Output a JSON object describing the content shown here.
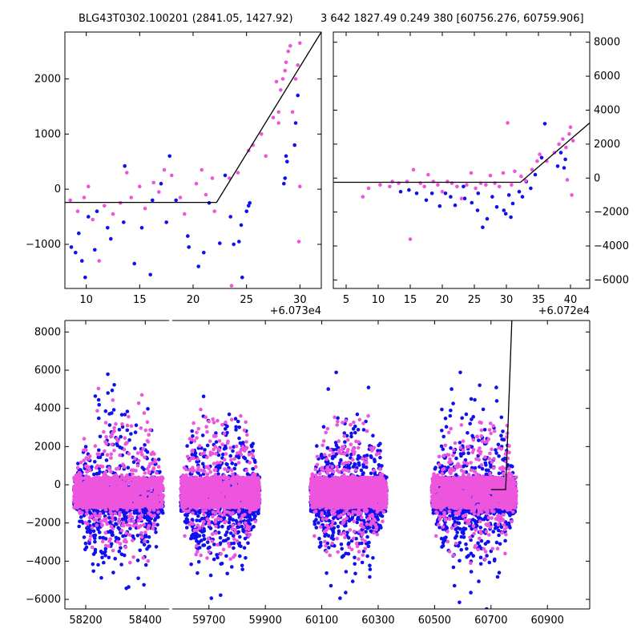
{
  "titles": {
    "left": "BLG43T0302.100201 (2841.05, 1427.92)",
    "right": "3 642 1827.49 0.249 380 [60756.276, 60759.906]"
  },
  "colors": {
    "series_a": "#1010ee",
    "series_b": "#ee55dd",
    "model": "#000000"
  },
  "chart_data": [
    {
      "id": "zoom-left",
      "type": "scatter",
      "xlim": [
        8,
        32
      ],
      "ylim": [
        -1800,
        2850
      ],
      "xticks": [
        10,
        15,
        20,
        25,
        30
      ],
      "xtick_labels": [
        "10",
        "15",
        "20",
        "25",
        "30"
      ],
      "yticks": [
        -1000,
        0,
        1000,
        2000
      ],
      "ytick_labels": [
        "−1000",
        "0",
        "1000",
        "2000"
      ],
      "offset_label": "+6.073e4",
      "model": [
        [
          8,
          -240
        ],
        [
          22.2,
          -240
        ],
        [
          32,
          2850
        ]
      ],
      "series_a": [
        [
          8.6,
          -1050
        ],
        [
          9.0,
          -1150
        ],
        [
          9.3,
          -800
        ],
        [
          9.6,
          -1300
        ],
        [
          9.9,
          -1600
        ],
        [
          10.2,
          -500
        ],
        [
          10.8,
          -1100
        ],
        [
          11.0,
          -400
        ],
        [
          12.0,
          -700
        ],
        [
          12.3,
          -900
        ],
        [
          13.5,
          -600
        ],
        [
          13.6,
          420
        ],
        [
          14.5,
          -1350
        ],
        [
          15.2,
          -700
        ],
        [
          16.0,
          -1550
        ],
        [
          16.2,
          -200
        ],
        [
          17.0,
          100
        ],
        [
          17.5,
          -600
        ],
        [
          17.8,
          600
        ],
        [
          18.4,
          -200
        ],
        [
          19.5,
          -850
        ],
        [
          19.6,
          -1050
        ],
        [
          20.5,
          -1400
        ],
        [
          21.0,
          -1150
        ],
        [
          21.5,
          -250
        ],
        [
          22.5,
          -980
        ],
        [
          23.0,
          250
        ],
        [
          23.5,
          -500
        ],
        [
          23.8,
          -1000
        ],
        [
          24.3,
          -950
        ],
        [
          24.5,
          -650
        ],
        [
          25.0,
          -400
        ],
        [
          25.2,
          -300
        ],
        [
          25.3,
          -250
        ],
        [
          24.6,
          -1600
        ],
        [
          28.5,
          100
        ],
        [
          28.6,
          200
        ],
        [
          28.7,
          600
        ],
        [
          28.8,
          500
        ],
        [
          29.5,
          800
        ],
        [
          29.6,
          1200
        ],
        [
          29.8,
          1700
        ]
      ],
      "series_b": [
        [
          8.5,
          -200
        ],
        [
          9.2,
          -400
        ],
        [
          9.8,
          -150
        ],
        [
          10.2,
          50
        ],
        [
          10.6,
          -550
        ],
        [
          11.2,
          -1300
        ],
        [
          11.7,
          -300
        ],
        [
          12.5,
          -450
        ],
        [
          13.2,
          -250
        ],
        [
          13.8,
          300
        ],
        [
          14.2,
          -150
        ],
        [
          15.0,
          50
        ],
        [
          15.5,
          -350
        ],
        [
          16.3,
          120
        ],
        [
          16.8,
          -50
        ],
        [
          17.3,
          350
        ],
        [
          18.0,
          250
        ],
        [
          18.8,
          -150
        ],
        [
          19.2,
          -450
        ],
        [
          20.3,
          100
        ],
        [
          20.8,
          350
        ],
        [
          21.2,
          -100
        ],
        [
          21.8,
          200
        ],
        [
          22.0,
          -400
        ],
        [
          23.4,
          200
        ],
        [
          23.6,
          -1750
        ],
        [
          24.2,
          300
        ],
        [
          25.2,
          700
        ],
        [
          25.6,
          800
        ],
        [
          26.4,
          1000
        ],
        [
          26.8,
          600
        ],
        [
          27.5,
          1300
        ],
        [
          28.0,
          1400
        ],
        [
          28.2,
          1800
        ],
        [
          28.4,
          2000
        ],
        [
          28.6,
          2150
        ],
        [
          28.7,
          2300
        ],
        [
          28.9,
          2500
        ],
        [
          29.1,
          2600
        ],
        [
          29.3,
          1400
        ],
        [
          29.6,
          2000
        ],
        [
          29.8,
          2250
        ],
        [
          30.0,
          2650
        ],
        [
          30.0,
          50
        ],
        [
          29.9,
          -950
        ],
        [
          28.0,
          1200
        ],
        [
          27.8,
          1950
        ]
      ]
    },
    {
      "id": "zoom-right",
      "type": "scatter",
      "xlim": [
        3,
        43
      ],
      "ylim": [
        -6500,
        8600
      ],
      "xticks": [
        5,
        10,
        15,
        20,
        25,
        30,
        35,
        40
      ],
      "xtick_labels": [
        "5",
        "10",
        "15",
        "20",
        "25",
        "30",
        "35",
        "40"
      ],
      "yticks": [
        -6000,
        -4000,
        -2000,
        0,
        2000,
        4000,
        6000,
        8000
      ],
      "ytick_labels": [
        "−6000",
        "−4000",
        "−2000",
        "0",
        "2000",
        "4000",
        "6000",
        "8000"
      ],
      "yaxis_side": "right",
      "offset_label": "+6.072e4",
      "model": [
        [
          3,
          -250
        ],
        [
          32.2,
          -250
        ],
        [
          43,
          3250
        ]
      ],
      "series_a": [
        [
          13.5,
          -800
        ],
        [
          14.8,
          -700
        ],
        [
          16.0,
          -900
        ],
        [
          17.5,
          -1300
        ],
        [
          18.4,
          -900
        ],
        [
          19.6,
          -1650
        ],
        [
          20.5,
          -900
        ],
        [
          21.3,
          -1100
        ],
        [
          22.0,
          -1600
        ],
        [
          23.5,
          -1200
        ],
        [
          24.6,
          -1450
        ],
        [
          25.5,
          -1900
        ],
        [
          26.3,
          -2900
        ],
        [
          27.0,
          -2400
        ],
        [
          27.8,
          -1100
        ],
        [
          28.5,
          -1700
        ],
        [
          29.6,
          -1900
        ],
        [
          30.4,
          -1000
        ],
        [
          31.0,
          -1500
        ],
        [
          32.0,
          -800
        ],
        [
          32.5,
          -1100
        ],
        [
          33.1,
          -200
        ],
        [
          33.8,
          -600
        ],
        [
          34.5,
          200
        ],
        [
          35.5,
          1200
        ],
        [
          36.0,
          3200
        ],
        [
          38.5,
          1500
        ],
        [
          39.0,
          600
        ],
        [
          39.2,
          1100
        ],
        [
          38.0,
          700
        ],
        [
          30.7,
          -2300
        ],
        [
          29.9,
          -2100
        ],
        [
          25.6,
          -900
        ],
        [
          23.3,
          -500
        ]
      ],
      "series_b": [
        [
          7.6,
          -1100
        ],
        [
          8.5,
          -600
        ],
        [
          10.3,
          -400
        ],
        [
          11.8,
          -500
        ],
        [
          12.2,
          -200
        ],
        [
          13.2,
          -300
        ],
        [
          14.5,
          -200
        ],
        [
          15.0,
          -3600
        ],
        [
          15.5,
          500
        ],
        [
          16.6,
          -300
        ],
        [
          17.2,
          -500
        ],
        [
          17.8,
          200
        ],
        [
          18.6,
          -200
        ],
        [
          19.3,
          -400
        ],
        [
          20.0,
          -800
        ],
        [
          20.8,
          -200
        ],
        [
          21.5,
          -300
        ],
        [
          22.3,
          -500
        ],
        [
          23.0,
          -1200
        ],
        [
          23.8,
          -400
        ],
        [
          24.5,
          300
        ],
        [
          25.2,
          -600
        ],
        [
          26.0,
          -300
        ],
        [
          26.8,
          -400
        ],
        [
          27.5,
          150
        ],
        [
          28.2,
          -300
        ],
        [
          28.9,
          -500
        ],
        [
          29.5,
          300
        ],
        [
          30.2,
          3250
        ],
        [
          30.8,
          -400
        ],
        [
          31.3,
          400
        ],
        [
          32.3,
          100
        ],
        [
          33.0,
          -150
        ],
        [
          34.0,
          500
        ],
        [
          34.8,
          1000
        ],
        [
          35.2,
          1400
        ],
        [
          36.3,
          1000
        ],
        [
          37.5,
          1500
        ],
        [
          38.2,
          2000
        ],
        [
          38.8,
          2300
        ],
        [
          39.3,
          1800
        ],
        [
          39.8,
          2600
        ],
        [
          40.0,
          3000
        ],
        [
          40.2,
          -1000
        ],
        [
          40.4,
          2200
        ],
        [
          39.5,
          -100
        ]
      ]
    },
    {
      "id": "full-lightcurve",
      "type": "scatter",
      "ylim": [
        -6500,
        8600
      ],
      "yticks": [
        -6000,
        -4000,
        -2000,
        0,
        2000,
        4000,
        6000,
        8000
      ],
      "ytick_labels": [
        "−6000",
        "−4000",
        "−2000",
        "0",
        "2000",
        "4000",
        "6000",
        "8000"
      ],
      "broken_axis": true,
      "segments": [
        {
          "xlim": [
            58130,
            58480
          ],
          "xticks": [
            58200,
            58400
          ],
          "xtick_labels": [
            "58200",
            "58400"
          ]
        },
        {
          "xlim": [
            59570,
            61050
          ],
          "xticks": [
            59700,
            59900,
            60100,
            60300,
            60500,
            60700,
            60900
          ],
          "xtick_labels": [
            "59700",
            "59900",
            "60100",
            "60300",
            "60500",
            "60700",
            "60900"
          ]
        }
      ],
      "seasons": [
        {
          "segment": 0,
          "x_range": [
            58160,
            58460
          ],
          "core_range": [
            -1500,
            400
          ]
        },
        {
          "segment": 1,
          "x_range": [
            59600,
            59880
          ],
          "core_range": [
            -1500,
            400
          ]
        },
        {
          "segment": 1,
          "x_range": [
            60060,
            60330
          ],
          "core_range": [
            -1500,
            400
          ]
        },
        {
          "segment": 1,
          "x_range": [
            60490,
            60790
          ],
          "core_range": [
            -1500,
            400
          ]
        }
      ],
      "event_points_b": [
        [
          60749,
          -400
        ],
        [
          60750,
          -600
        ],
        [
          60751,
          -300
        ],
        [
          60752,
          0
        ],
        [
          60753,
          500
        ],
        [
          60754,
          1200
        ],
        [
          60755,
          1700
        ],
        [
          60756,
          2500
        ],
        [
          60757,
          3100
        ],
        [
          60758,
          2700
        ],
        [
          60748,
          -900
        ],
        [
          60750,
          -3600
        ]
      ],
      "model": [
        [
          60700,
          -250
        ],
        [
          60752,
          -250
        ],
        [
          60774,
          8600
        ]
      ]
    }
  ]
}
